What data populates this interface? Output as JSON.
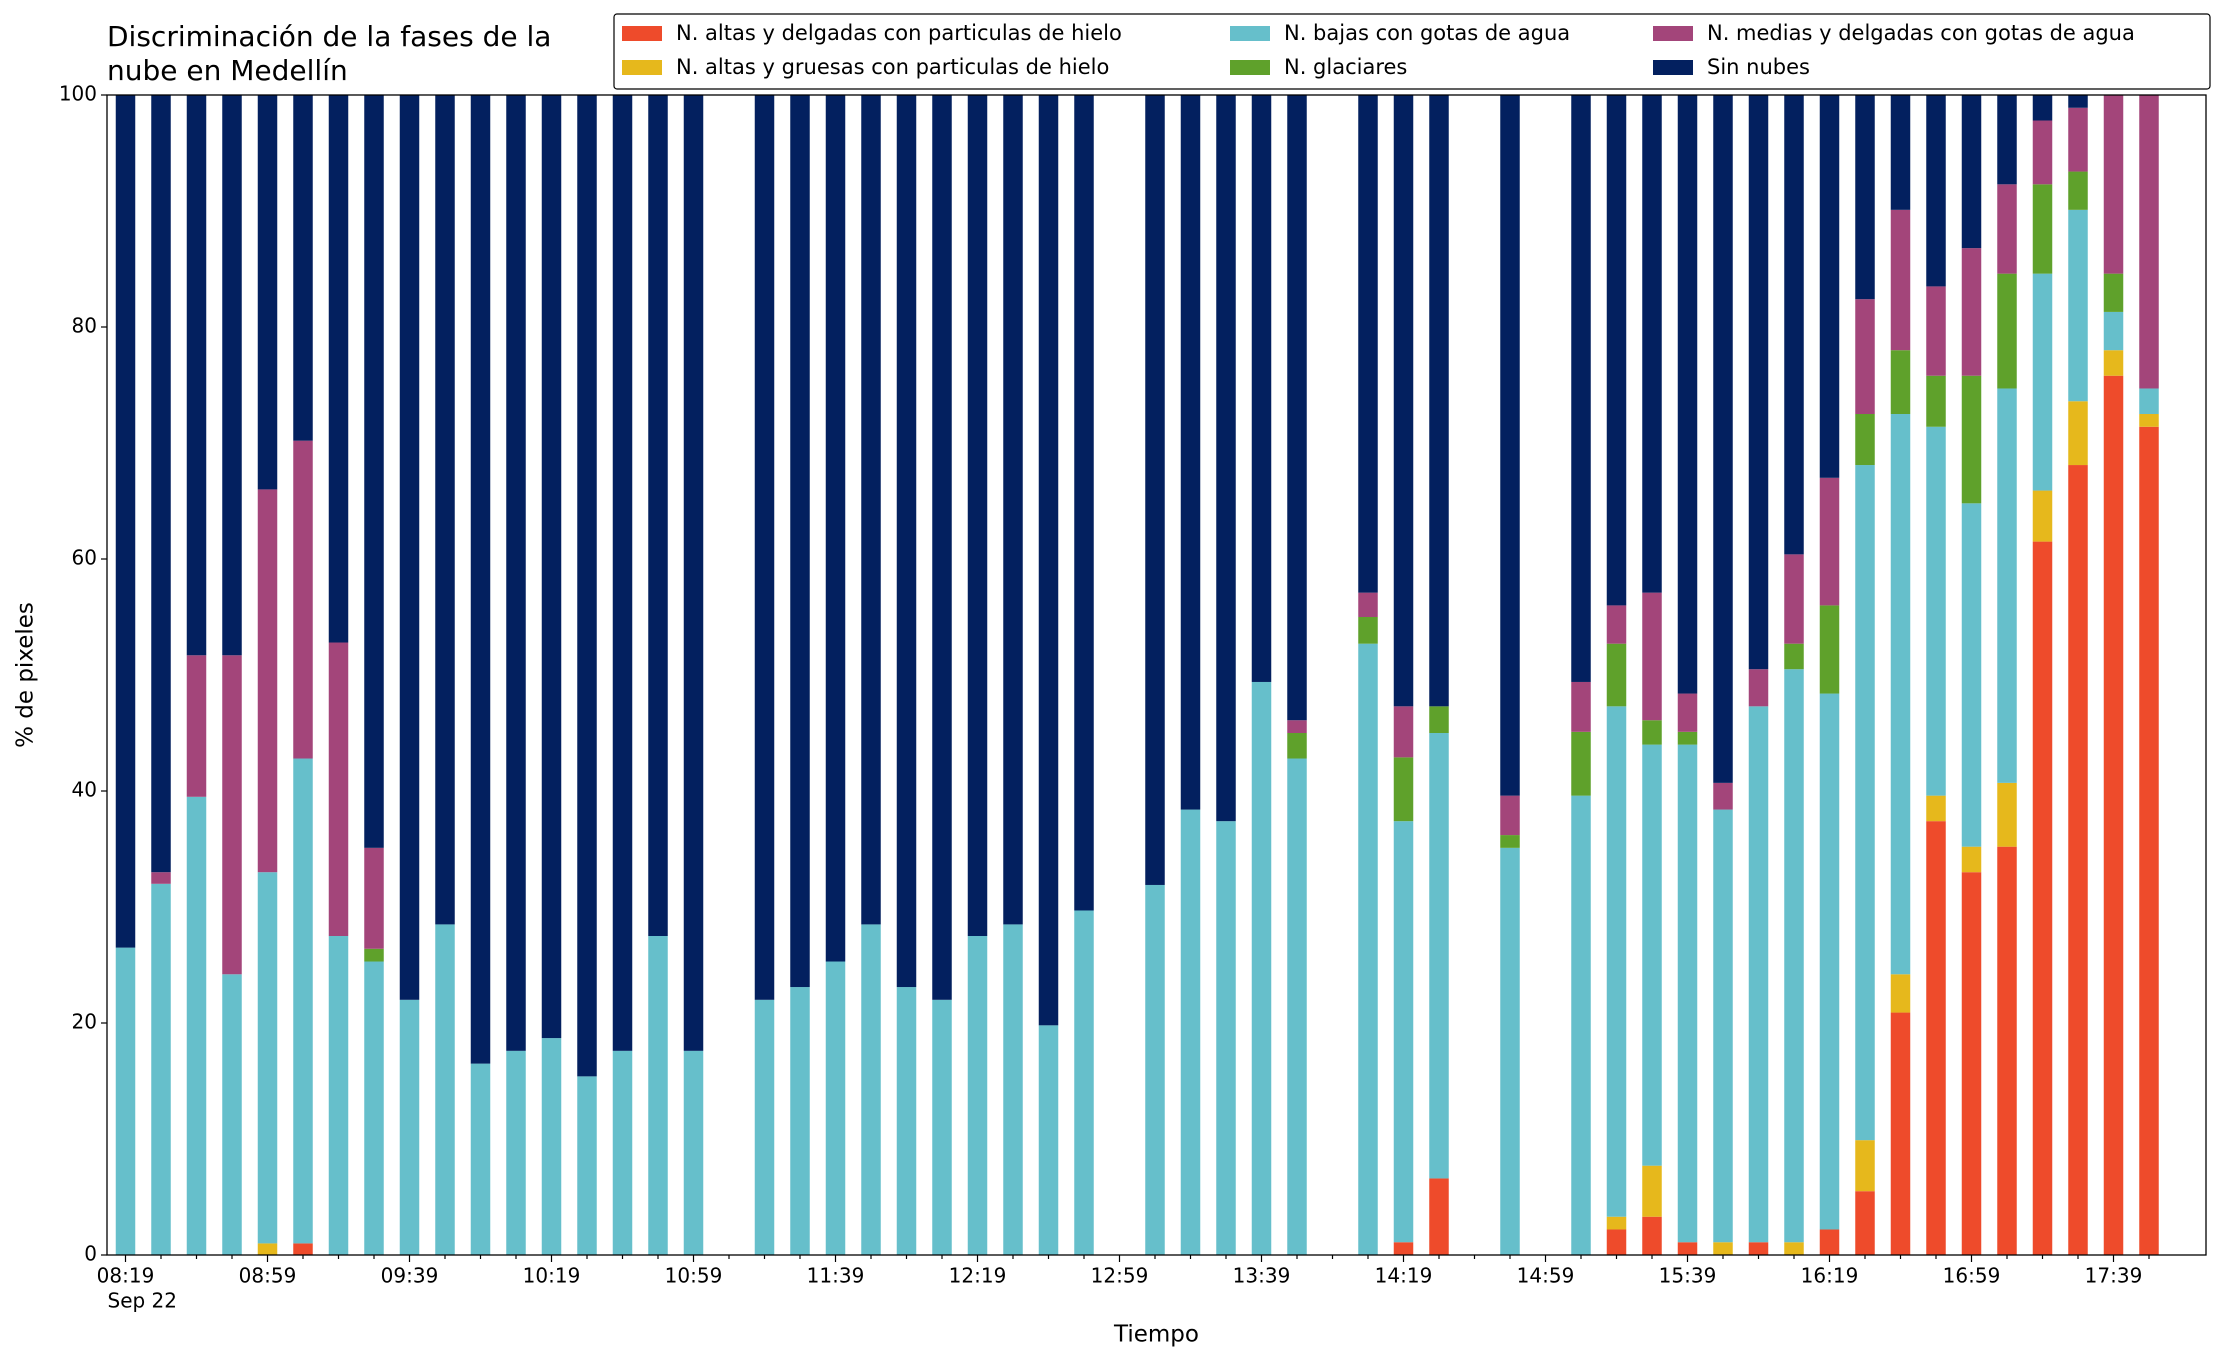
{
  "chart_data": {
    "type": "stacked_bar",
    "title": "Discriminación de la fases de la nube en Medellín",
    "xlabel": "Tiempo",
    "ylabel": "% de pixeles",
    "date_label": "Sep 22",
    "categories": [
      "08:19",
      null,
      null,
      null,
      "08:59",
      null,
      null,
      null,
      "09:39",
      null,
      null,
      null,
      "10:19",
      null,
      null,
      null,
      "10:59",
      null,
      null,
      null,
      "11:39",
      null,
      null,
      null,
      "12:19",
      null,
      null,
      null,
      "12:59",
      null,
      null,
      null,
      "13:39",
      null,
      null,
      null,
      "14:19",
      null,
      null,
      null,
      "14:59",
      null,
      null,
      null,
      "15:39",
      null,
      null,
      null,
      "16:19",
      null,
      null,
      null,
      "16:59",
      null,
      null,
      null,
      "17:39",
      null
    ],
    "series": [
      {
        "name": "N. altas y delgadas con particulas de hielo",
        "color": "#ee4b2b",
        "values": [
          0,
          0,
          0,
          0,
          0,
          1,
          0,
          0,
          0,
          0,
          0,
          0,
          0,
          0,
          0,
          0,
          0,
          null,
          0,
          0,
          0,
          0,
          0,
          0,
          0,
          0,
          0,
          0,
          null,
          0,
          0,
          0,
          0,
          0,
          null,
          0,
          1.1,
          6.6,
          null,
          0,
          null,
          0,
          2.2,
          3.3,
          1.1,
          0,
          1.1,
          0,
          2.2,
          5.5,
          20.9,
          37.4,
          33,
          35.2,
          61.5,
          68.1,
          75.8,
          71.4
        ]
      },
      {
        "name": "N. altas y gruesas con particulas de hielo",
        "color": "#e6b81c",
        "values": [
          0,
          0,
          0,
          0,
          1,
          0,
          0,
          0,
          0,
          0,
          0,
          0,
          0,
          0,
          0,
          0,
          0,
          null,
          0,
          0,
          0,
          0,
          0,
          0,
          0,
          0,
          0,
          0,
          null,
          0,
          0,
          0,
          0,
          0,
          null,
          0,
          0,
          0,
          null,
          0,
          null,
          0,
          1.1,
          4.4,
          0,
          1.1,
          0,
          1.1,
          0,
          4.4,
          3.3,
          2.2,
          2.2,
          5.5,
          4.4,
          5.5,
          2.2,
          1.1
        ]
      },
      {
        "name": "N. bajas con gotas de agua",
        "color": "#66bfcb",
        "values": [
          26.5,
          32,
          39.5,
          24.2,
          32,
          41.8,
          27.5,
          25.3,
          22,
          28.5,
          16.5,
          17.6,
          18.7,
          15.4,
          17.6,
          27.5,
          17.6,
          null,
          22,
          23.1,
          25.3,
          28.5,
          23.1,
          22,
          27.5,
          28.5,
          19.8,
          29.7,
          null,
          31.9,
          38.4,
          37.4,
          49.4,
          42.8,
          null,
          52.7,
          36.3,
          38.4,
          null,
          35.1,
          null,
          39.6,
          44,
          36.3,
          42.9,
          37.3,
          46.2,
          49.4,
          46.2,
          58.2,
          48.3,
          31.8,
          29.6,
          34,
          18.7,
          16.5,
          3.3,
          2.2
        ]
      },
      {
        "name": "N. glaciares",
        "color": "#5fa12b",
        "values": [
          0,
          0,
          0,
          0,
          0,
          0,
          0,
          1.1,
          0,
          0,
          0,
          0,
          0,
          0,
          0,
          0,
          0,
          null,
          0,
          0,
          0,
          0,
          0,
          0,
          0,
          0,
          0,
          0,
          null,
          0,
          0,
          0,
          0,
          2.2,
          null,
          2.3,
          5.5,
          2.3,
          null,
          1.1,
          null,
          5.5,
          5.4,
          2.1,
          1.1,
          0,
          0,
          2.2,
          7.6,
          4.4,
          5.5,
          4.4,
          11,
          9.9,
          7.7,
          3.3,
          3.3,
          0
        ]
      },
      {
        "name": "N. medias y delgadas con gotas de agua",
        "color": "#a3457a",
        "values": [
          0,
          1,
          12.2,
          27.5,
          33,
          27.4,
          25.3,
          8.7,
          0,
          0,
          0,
          0,
          0,
          0,
          0,
          0,
          0,
          null,
          0,
          0,
          0,
          0,
          0,
          0,
          0,
          0,
          0,
          0,
          null,
          0,
          0,
          0,
          0,
          1.1,
          null,
          2.1,
          4.4,
          0,
          null,
          3.4,
          null,
          4.3,
          3.3,
          11,
          3.3,
          2.3,
          3.2,
          7.7,
          11,
          9.9,
          12.1,
          7.7,
          11,
          7.7,
          5.5,
          5.5,
          15.4,
          25.3
        ]
      },
      {
        "name": "Sin nubes",
        "color": "#03205f",
        "values": [
          73.5,
          67,
          48.3,
          48.3,
          34,
          29.8,
          47.2,
          64.9,
          78,
          71.5,
          83.5,
          82.4,
          81.3,
          84.6,
          82.4,
          72.5,
          82.4,
          null,
          78,
          76.9,
          74.7,
          71.5,
          76.9,
          78,
          72.5,
          71.5,
          80.2,
          70.3,
          null,
          68.1,
          61.6,
          62.6,
          50.6,
          53.9,
          null,
          42.9,
          52.7,
          52.7,
          null,
          60.4,
          null,
          50.6,
          44,
          42.9,
          51.6,
          59.3,
          49.5,
          39.6,
          33,
          17.6,
          9.9,
          16.5,
          13.2,
          7.7,
          2.2,
          1.1,
          0,
          0
        ]
      }
    ],
    "ylim": [
      0,
      100
    ],
    "yticks": [
      0,
      20,
      40,
      60,
      80,
      100
    ],
    "grid": false,
    "legend": "upper right"
  }
}
